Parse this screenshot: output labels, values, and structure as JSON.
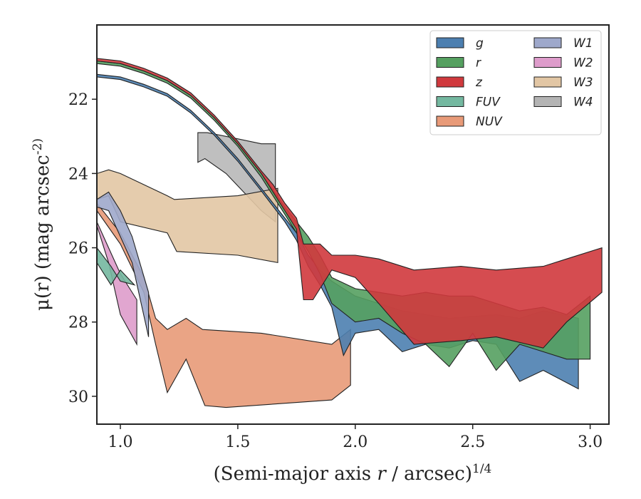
{
  "chart_data": {
    "type": "area",
    "title": "",
    "xlabel": "(Semi-major axis r / arcsec)^1/4",
    "ylabel": "μ(r) (mag arcsec^-2)",
    "xlim": [
      0.9,
      3.08
    ],
    "ylim": [
      30.75,
      20.0
    ],
    "y_inverted": true,
    "x_ticks": [
      "1.0",
      "1.5",
      "2.0",
      "2.5",
      "3.0"
    ],
    "y_ticks": [
      "22",
      "24",
      "26",
      "28",
      "30"
    ],
    "grid": false,
    "legend_position": "top-right",
    "legend_columns": 2,
    "series": [
      {
        "name": "g",
        "color": "#4c7fb0",
        "upper": [
          [
            0.9,
            21.33
          ],
          [
            1.0,
            21.4
          ],
          [
            1.1,
            21.6
          ],
          [
            1.2,
            21.85
          ],
          [
            1.3,
            22.3
          ],
          [
            1.4,
            22.9
          ],
          [
            1.5,
            23.6
          ],
          [
            1.6,
            24.4
          ],
          [
            1.7,
            25.2
          ],
          [
            1.75,
            25.6
          ],
          [
            1.8,
            26.2
          ],
          [
            1.85,
            26.6
          ],
          [
            1.9,
            26.9
          ],
          [
            1.95,
            27.1
          ],
          [
            2.0,
            27.3
          ],
          [
            2.1,
            27.5
          ],
          [
            2.2,
            27.7
          ],
          [
            2.3,
            27.8
          ],
          [
            2.4,
            27.9
          ],
          [
            2.5,
            27.85
          ],
          [
            2.6,
            27.8
          ],
          [
            2.7,
            27.9
          ],
          [
            2.8,
            27.7
          ],
          [
            2.95,
            27.9
          ]
        ],
        "lower": [
          [
            0.9,
            21.4
          ],
          [
            1.0,
            21.47
          ],
          [
            1.1,
            21.67
          ],
          [
            1.2,
            21.92
          ],
          [
            1.3,
            22.37
          ],
          [
            1.4,
            22.97
          ],
          [
            1.5,
            23.67
          ],
          [
            1.6,
            24.47
          ],
          [
            1.7,
            25.3
          ],
          [
            1.75,
            25.8
          ],
          [
            1.8,
            26.5
          ],
          [
            1.85,
            27.0
          ],
          [
            1.9,
            27.6
          ],
          [
            1.95,
            28.9
          ],
          [
            2.0,
            28.3
          ],
          [
            2.1,
            28.2
          ],
          [
            2.2,
            28.8
          ],
          [
            2.3,
            28.6
          ],
          [
            2.4,
            28.7
          ],
          [
            2.5,
            28.5
          ],
          [
            2.6,
            28.6
          ],
          [
            2.7,
            29.6
          ],
          [
            2.8,
            29.3
          ],
          [
            2.95,
            29.8
          ]
        ]
      },
      {
        "name": "r",
        "color": "#55a060",
        "upper": [
          [
            0.9,
            20.97
          ],
          [
            1.0,
            21.04
          ],
          [
            1.1,
            21.24
          ],
          [
            1.2,
            21.5
          ],
          [
            1.3,
            21.9
          ],
          [
            1.4,
            22.5
          ],
          [
            1.5,
            23.2
          ],
          [
            1.6,
            24.0
          ],
          [
            1.7,
            24.9
          ],
          [
            1.75,
            25.3
          ],
          [
            1.8,
            25.7
          ],
          [
            1.85,
            26.2
          ],
          [
            1.9,
            26.8
          ],
          [
            2.0,
            27.1
          ],
          [
            2.1,
            27.2
          ],
          [
            2.2,
            27.3
          ],
          [
            2.3,
            27.2
          ],
          [
            2.4,
            27.3
          ],
          [
            2.5,
            27.3
          ],
          [
            2.6,
            27.5
          ],
          [
            2.7,
            27.7
          ],
          [
            2.8,
            27.6
          ],
          [
            2.9,
            27.8
          ],
          [
            3.0,
            27.3
          ]
        ],
        "lower": [
          [
            0.9,
            21.04
          ],
          [
            1.0,
            21.11
          ],
          [
            1.1,
            21.31
          ],
          [
            1.2,
            21.57
          ],
          [
            1.3,
            21.97
          ],
          [
            1.4,
            22.57
          ],
          [
            1.5,
            23.27
          ],
          [
            1.6,
            24.1
          ],
          [
            1.7,
            25.1
          ],
          [
            1.75,
            25.6
          ],
          [
            1.8,
            26.1
          ],
          [
            1.85,
            26.7
          ],
          [
            1.9,
            27.5
          ],
          [
            2.0,
            28.0
          ],
          [
            2.1,
            27.9
          ],
          [
            2.2,
            28.3
          ],
          [
            2.3,
            28.6
          ],
          [
            2.4,
            29.2
          ],
          [
            2.5,
            28.3
          ],
          [
            2.6,
            29.3
          ],
          [
            2.7,
            28.6
          ],
          [
            2.8,
            28.8
          ],
          [
            2.9,
            29.0
          ],
          [
            3.0,
            29.0
          ]
        ]
      },
      {
        "name": "z",
        "color": "#d0393d",
        "upper": [
          [
            0.9,
            20.9
          ],
          [
            1.0,
            20.97
          ],
          [
            1.1,
            21.17
          ],
          [
            1.2,
            21.43
          ],
          [
            1.3,
            21.83
          ],
          [
            1.4,
            22.43
          ],
          [
            1.5,
            23.13
          ],
          [
            1.6,
            23.93
          ],
          [
            1.65,
            24.3
          ],
          [
            1.7,
            24.8
          ],
          [
            1.75,
            25.2
          ],
          [
            1.78,
            25.9
          ],
          [
            1.85,
            25.9
          ],
          [
            1.9,
            26.2
          ],
          [
            2.0,
            26.2
          ],
          [
            2.1,
            26.3
          ],
          [
            2.25,
            26.6
          ],
          [
            2.45,
            26.5
          ],
          [
            2.6,
            26.6
          ],
          [
            2.8,
            26.5
          ],
          [
            2.9,
            26.3
          ],
          [
            3.05,
            26.0
          ]
        ],
        "lower": [
          [
            0.9,
            20.97
          ],
          [
            1.0,
            21.04
          ],
          [
            1.1,
            21.24
          ],
          [
            1.2,
            21.5
          ],
          [
            1.3,
            21.9
          ],
          [
            1.4,
            22.5
          ],
          [
            1.5,
            23.2
          ],
          [
            1.6,
            24.0
          ],
          [
            1.65,
            24.5
          ],
          [
            1.7,
            25.0
          ],
          [
            1.75,
            25.5
          ],
          [
            1.78,
            27.4
          ],
          [
            1.82,
            27.4
          ],
          [
            1.9,
            26.6
          ],
          [
            2.0,
            26.8
          ],
          [
            2.1,
            27.5
          ],
          [
            2.25,
            28.6
          ],
          [
            2.45,
            28.5
          ],
          [
            2.6,
            28.4
          ],
          [
            2.8,
            28.7
          ],
          [
            2.9,
            28.0
          ],
          [
            3.05,
            27.2
          ]
        ]
      },
      {
        "name": "FUV",
        "color": "#74b8a0",
        "upper": [
          [
            0.9,
            26.0
          ],
          [
            0.96,
            26.5
          ],
          [
            1.0,
            26.9
          ],
          [
            1.06,
            27.0
          ]
        ],
        "lower": [
          [
            0.9,
            26.4
          ],
          [
            0.96,
            27.0
          ],
          [
            1.0,
            26.6
          ],
          [
            1.06,
            27.0
          ]
        ]
      },
      {
        "name": "NUV",
        "color": "#e89a78",
        "upper": [
          [
            0.9,
            24.8
          ],
          [
            1.0,
            25.6
          ],
          [
            1.1,
            26.8
          ],
          [
            1.15,
            27.9
          ],
          [
            1.2,
            28.2
          ],
          [
            1.28,
            27.9
          ],
          [
            1.35,
            28.2
          ],
          [
            1.6,
            28.3
          ],
          [
            1.9,
            28.6
          ],
          [
            1.98,
            28.2
          ]
        ],
        "lower": [
          [
            0.9,
            25.0
          ],
          [
            1.0,
            25.9
          ],
          [
            1.1,
            27.2
          ],
          [
            1.15,
            28.6
          ],
          [
            1.2,
            29.9
          ],
          [
            1.28,
            29.0
          ],
          [
            1.36,
            30.25
          ],
          [
            1.45,
            30.3
          ],
          [
            1.9,
            30.1
          ],
          [
            1.98,
            29.7
          ]
        ]
      },
      {
        "name": "W1",
        "color": "#9ea8cb",
        "upper": [
          [
            0.9,
            24.7
          ],
          [
            0.95,
            24.5
          ],
          [
            1.0,
            25.0
          ],
          [
            1.05,
            25.7
          ],
          [
            1.12,
            27.2
          ]
        ],
        "lower": [
          [
            0.9,
            24.9
          ],
          [
            0.95,
            25.0
          ],
          [
            1.0,
            25.7
          ],
          [
            1.05,
            26.4
          ],
          [
            1.12,
            28.4
          ]
        ]
      },
      {
        "name": "W2",
        "color": "#de9ccb",
        "upper": [
          [
            0.9,
            25.3
          ],
          [
            0.95,
            26.0
          ],
          [
            1.0,
            26.7
          ],
          [
            1.07,
            27.4
          ]
        ],
        "lower": [
          [
            0.9,
            25.4
          ],
          [
            0.95,
            26.4
          ],
          [
            1.0,
            27.8
          ],
          [
            1.07,
            28.6
          ]
        ]
      },
      {
        "name": "W3",
        "color": "#e2c6a4",
        "upper": [
          [
            0.9,
            24.0
          ],
          [
            0.95,
            23.9
          ],
          [
            1.0,
            24.0
          ],
          [
            1.2,
            24.6
          ],
          [
            1.23,
            24.7
          ],
          [
            1.5,
            24.6
          ],
          [
            1.67,
            24.4
          ]
        ],
        "lower": [
          [
            0.9,
            24.7
          ],
          [
            0.95,
            24.6
          ],
          [
            1.0,
            25.3
          ],
          [
            1.2,
            25.6
          ],
          [
            1.24,
            26.1
          ],
          [
            1.5,
            26.2
          ],
          [
            1.67,
            26.4
          ]
        ]
      },
      {
        "name": "W4",
        "color": "#b4b4b4",
        "upper": [
          [
            1.33,
            22.9
          ],
          [
            1.37,
            22.9
          ],
          [
            1.45,
            23.0
          ],
          [
            1.6,
            23.2
          ],
          [
            1.66,
            23.2
          ]
        ],
        "lower": [
          [
            1.33,
            23.7
          ],
          [
            1.36,
            23.6
          ],
          [
            1.45,
            24.0
          ],
          [
            1.6,
            25.0
          ],
          [
            1.66,
            25.3
          ]
        ]
      }
    ]
  }
}
